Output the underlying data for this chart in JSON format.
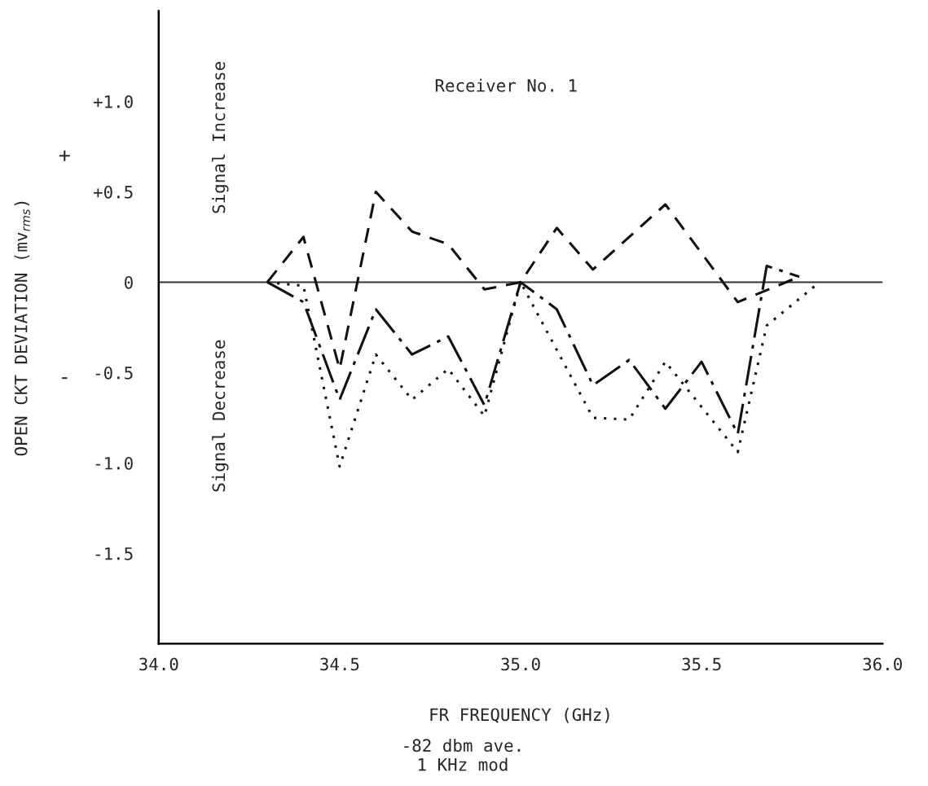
{
  "chart_data": {
    "type": "line",
    "xlabel": "FR FREQUENCY (GHz)",
    "ylabel": "OPEN CKT DEVIATION (mv$_{rms}$)",
    "annotations": [
      "Receiver No. 1",
      "Signal Increase",
      "Signal Decrease",
      "+",
      "-",
      "-82 dbm ave.\n1 KHz mod"
    ],
    "xlim": [
      34.0,
      36.0
    ],
    "xticks": [
      {
        "value": 34.0,
        "label": "34.0"
      },
      {
        "value": 34.5,
        "label": "34.5"
      },
      {
        "value": 35.0,
        "label": "35.0"
      },
      {
        "value": 35.5,
        "label": "35.5"
      },
      {
        "value": 36.0,
        "label": "36.0"
      }
    ],
    "ylim": [
      -2.0,
      1.5
    ],
    "yticks": [
      {
        "value": 1.0,
        "label": "+1.0"
      },
      {
        "value": 0.5,
        "label": "+0.5"
      },
      {
        "value": 0,
        "label": "0"
      },
      {
        "value": -0.5,
        "label": "-0.5"
      },
      {
        "value": -1.0,
        "label": "-1.0"
      },
      {
        "value": -1.5,
        "label": "-1.5"
      }
    ],
    "grid": false,
    "marker": "none",
    "ref_lines": [
      {
        "axis": "y",
        "value": 0,
        "color": "#333333",
        "line_style": "solid"
      }
    ],
    "series": [
      {
        "color": "#111111",
        "line_style": "dashed",
        "x": [
          34.3,
          34.4,
          34.5,
          34.6,
          34.7,
          34.8,
          34.9,
          35.0,
          35.1,
          35.2,
          35.4,
          35.6,
          35.77
        ],
        "values": [
          0,
          0.25,
          -0.48,
          0.5,
          0.28,
          0.21,
          -0.04,
          0,
          0.3,
          0.07,
          0.43,
          -0.11,
          0.03
        ]
      },
      {
        "color": "#111111",
        "line_style": "dashdot",
        "x": [
          34.3,
          34.4,
          34.5,
          34.6,
          34.7,
          34.8,
          34.9,
          35.0,
          35.1,
          35.2,
          35.3,
          35.4,
          35.5,
          35.6,
          35.68,
          35.77
        ],
        "values": [
          0,
          -0.11,
          -0.65,
          -0.15,
          -0.4,
          -0.3,
          -0.68,
          0,
          -0.15,
          -0.57,
          -0.43,
          -0.7,
          -0.44,
          -0.84,
          0.09,
          0.03
        ]
      },
      {
        "color": "#111111",
        "line_style": "dotted",
        "x": [
          34.3,
          34.4,
          34.5,
          34.6,
          34.7,
          34.8,
          34.9,
          35.0,
          35.2,
          35.3,
          35.4,
          35.6,
          35.68,
          35.82
        ],
        "values": [
          0,
          -0.02,
          -1.02,
          -0.4,
          -0.65,
          -0.48,
          -0.74,
          0,
          -0.75,
          -0.76,
          -0.44,
          -0.94,
          -0.24,
          -0.01
        ]
      }
    ]
  }
}
